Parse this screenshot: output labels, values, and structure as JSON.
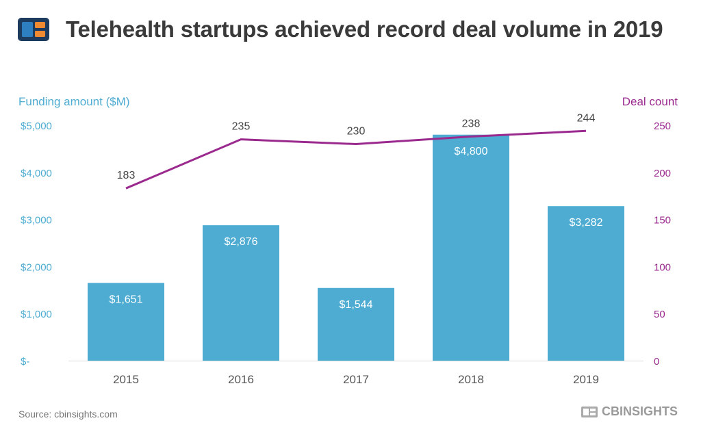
{
  "header": {
    "title": "Telehealth startups achieved record deal volume in 2019"
  },
  "footer": {
    "source": "Source: cbinsights.com",
    "brand": "CBINSIGHTS"
  },
  "colors": {
    "bar": "#4eacd2",
    "line": "#9b2a8f",
    "left_axis": "#4eacd2",
    "right_axis": "#9b2a8f",
    "logo_navy": "#1d3a5f",
    "logo_blue": "#2e7fc1",
    "logo_orange": "#f08a32"
  },
  "chart_data": {
    "type": "bar",
    "categories": [
      "2015",
      "2016",
      "2017",
      "2018",
      "2019"
    ],
    "series": [
      {
        "name": "Funding amount ($M)",
        "type": "bar",
        "axis": "left",
        "values": [
          1651,
          2876,
          1544,
          4800,
          3282
        ],
        "labels": [
          "$1,651",
          "$2,876",
          "$1,544",
          "$4,800",
          "$3,282"
        ]
      },
      {
        "name": "Deal count",
        "type": "line",
        "axis": "right",
        "values": [
          183,
          235,
          230,
          238,
          244
        ],
        "labels": [
          "183",
          "235",
          "230",
          "238",
          "244"
        ]
      }
    ],
    "left_axis": {
      "label": "Funding amount ($M)",
      "ylim": [
        0,
        5000
      ],
      "ticks": [
        0,
        1000,
        2000,
        3000,
        4000,
        5000
      ],
      "tick_labels": [
        "$-",
        "$1,000",
        "$2,000",
        "$3,000",
        "$4,000",
        "$5,000"
      ]
    },
    "right_axis": {
      "label": "Deal count",
      "ylim": [
        0,
        250
      ],
      "ticks": [
        0,
        50,
        100,
        150,
        200,
        250
      ],
      "tick_labels": [
        "0",
        "50",
        "100",
        "150",
        "200",
        "250"
      ]
    },
    "grid": false,
    "legend": "none"
  }
}
